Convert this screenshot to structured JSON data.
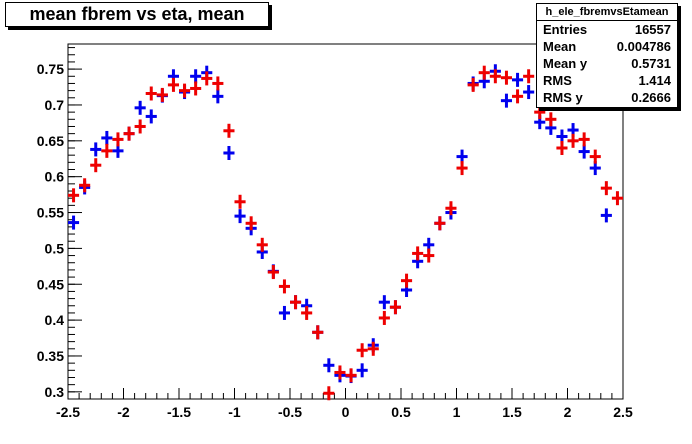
{
  "chart_title": "mean fbrem vs eta, mean",
  "stats": {
    "name": "h_ele_fbremvsEtamean",
    "rows": [
      {
        "label": "Entries",
        "value": "16557"
      },
      {
        "label": "Mean",
        "value": "0.004786"
      },
      {
        "label": "Mean y",
        "value": "0.5731"
      },
      {
        "label": "RMS",
        "value": "1.414"
      },
      {
        "label": "RMS y",
        "value": "0.2666"
      }
    ]
  },
  "chart_data": {
    "type": "scatter",
    "title": "mean fbrem vs eta, mean",
    "xlabel": "",
    "ylabel": "",
    "xlim": [
      -2.5,
      2.5
    ],
    "ylim": [
      0.29,
      0.785
    ],
    "xticks": [
      -2.5,
      -2,
      -1.5,
      -1,
      -0.5,
      0,
      0.5,
      1,
      1.5,
      2,
      2.5
    ],
    "xtick_labels": [
      "-2.5",
      "-2",
      "-1.5",
      "-1",
      "-0.5",
      "0",
      "0.5",
      "1",
      "1.5",
      "2",
      "2.5"
    ],
    "yticks": [
      0.3,
      0.35,
      0.4,
      0.45,
      0.5,
      0.55,
      0.6,
      0.65,
      0.7,
      0.75
    ],
    "ytick_labels": [
      "0.3",
      "0.35",
      "0.4",
      "0.45",
      "0.5",
      "0.55",
      "0.6",
      "0.65",
      "0.7",
      "0.75"
    ],
    "bin_width": 0.1,
    "grid": false,
    "series": [
      {
        "color": "#0000ee",
        "x": [
          -2.45,
          -2.35,
          -2.25,
          -2.15,
          -2.05,
          -1.95,
          -1.85,
          -1.75,
          -1.65,
          -1.55,
          -1.45,
          -1.35,
          -1.25,
          -1.15,
          -1.05,
          -0.95,
          -0.85,
          -0.75,
          -0.65,
          -0.55,
          -0.45,
          -0.35,
          -0.25,
          -0.15,
          -0.05,
          0.05,
          0.15,
          0.25,
          0.35,
          0.45,
          0.55,
          0.65,
          0.75,
          0.85,
          0.95,
          1.05,
          1.15,
          1.25,
          1.35,
          1.45,
          1.55,
          1.65,
          1.75,
          1.85,
          1.95,
          2.05,
          2.15,
          2.25,
          2.35
        ],
        "y": [
          0.536,
          0.585,
          0.638,
          0.654,
          0.636,
          0.66,
          0.696,
          0.684,
          0.713,
          0.74,
          0.718,
          0.74,
          0.745,
          0.712,
          0.633,
          0.545,
          0.528,
          0.495,
          0.468,
          0.41,
          0.425,
          0.42,
          0.383,
          0.337,
          0.323,
          0.322,
          0.33,
          0.365,
          0.425,
          0.418,
          0.442,
          0.482,
          0.505,
          0.535,
          0.55,
          0.628,
          0.73,
          0.733,
          0.747,
          0.706,
          0.735,
          0.718,
          0.676,
          0.668,
          0.656,
          0.665,
          0.635,
          0.612,
          0.546
        ]
      },
      {
        "color": "#ee0000",
        "x": [
          -2.45,
          -2.35,
          -2.25,
          -2.15,
          -2.05,
          -1.95,
          -1.85,
          -1.75,
          -1.65,
          -1.55,
          -1.45,
          -1.35,
          -1.25,
          -1.15,
          -1.05,
          -0.95,
          -0.85,
          -0.75,
          -0.65,
          -0.55,
          -0.45,
          -0.35,
          -0.25,
          -0.15,
          -0.05,
          0.05,
          0.15,
          0.25,
          0.35,
          0.45,
          0.55,
          0.65,
          0.75,
          0.85,
          0.95,
          1.05,
          1.15,
          1.25,
          1.35,
          1.45,
          1.55,
          1.65,
          1.75,
          1.85,
          1.95,
          2.05,
          2.15,
          2.25,
          2.35,
          2.45
        ],
        "y": [
          0.574,
          0.588,
          0.616,
          0.636,
          0.652,
          0.66,
          0.67,
          0.716,
          0.714,
          0.728,
          0.72,
          0.723,
          0.737,
          0.73,
          0.664,
          0.565,
          0.535,
          0.505,
          0.467,
          0.447,
          0.425,
          0.41,
          0.383,
          0.298,
          0.327,
          0.323,
          0.358,
          0.36,
          0.403,
          0.418,
          0.455,
          0.493,
          0.49,
          0.535,
          0.556,
          0.612,
          0.728,
          0.745,
          0.74,
          0.738,
          0.712,
          0.74,
          0.69,
          0.68,
          0.64,
          0.65,
          0.652,
          0.628,
          0.584,
          0.57
        ]
      }
    ]
  }
}
